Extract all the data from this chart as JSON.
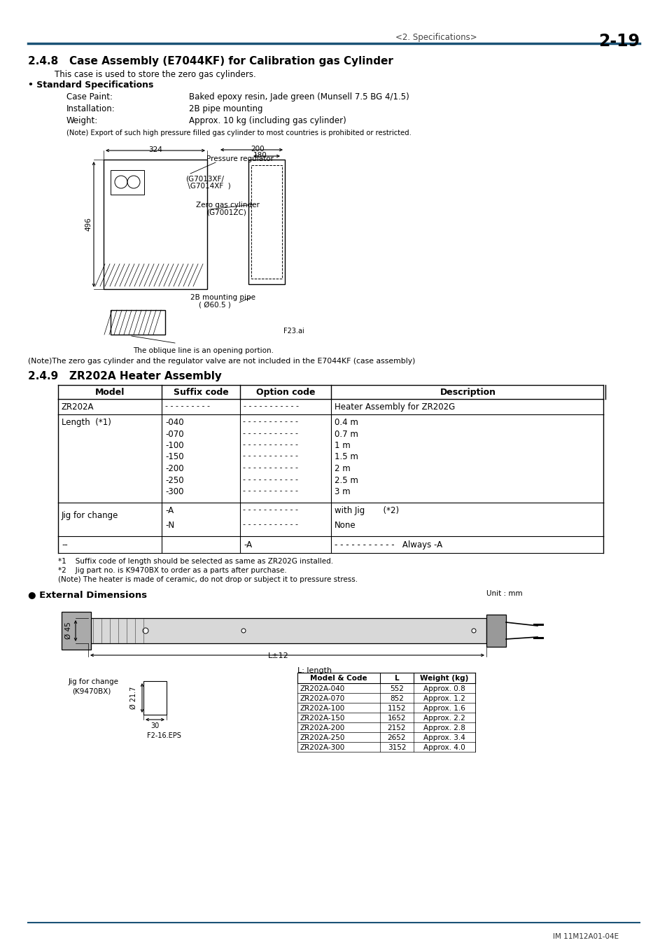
{
  "page_header_left": "<2. Specifications>",
  "page_header_right": "2-19",
  "section_248_title": "2.4.8   Case Assembly (E7044KF) for Calibration gas Cylinder",
  "section_248_intro": "This case is used to store the zero gas cylinders.",
  "std_spec_title": "• Standard Specifications",
  "spec_rows": [
    [
      "Case Paint:",
      "Baked epoxy resin, Jade green (Munsell 7.5 BG 4/1.5)"
    ],
    [
      "Installation:",
      "2B pipe mounting"
    ],
    [
      "Weight:",
      "Approx. 10 kg (including gas cylinder)"
    ]
  ],
  "note_export": "(Note) Export of such high pressure filled gas cylinder to most countries is prohibited or restricted.",
  "note_zero": "(Note)The zero gas cylinder and the regulator valve are not included in the E7044KF (case assembly)",
  "oblique_note": "The oblique line is an opening portion.",
  "fig_label": "F23.ai",
  "section_249_title": "2.4.9   ZR202A Heater Assembly",
  "table_headers": [
    "Model",
    "Suffix code",
    "Option code",
    "Description"
  ],
  "table_rows": [
    [
      "ZR202A",
      "- - - - - - - - -",
      "- - - - - - - - - - -",
      "Heater Assembly for ZR202G"
    ],
    [
      "Length  (*1)",
      "-040\n-070\n-100\n-150\n-200\n-250\n-300",
      "- - - - - - - - - - -\n- - - - - - - - - - -\n- - - - - - - - - - -\n- - - - - - - - - - -\n- - - - - - - - - - -\n- - - - - - - - - - -\n- - - - - - - - - - -",
      "0.4 m\n0.7 m\n1 m\n1.5 m\n2 m\n2.5 m\n3 m"
    ],
    [
      "Jig for change",
      "-A\n-N",
      "- - - - - - - - - - -\n- - - - - - - - - - -",
      "with Jig       (*2)\nNone"
    ],
    [
      "--",
      "",
      "-A",
      "- - - - - - - - - - -   Always -A"
    ]
  ],
  "footnote1": "*1    Suffix code of length should be selected as same as ZR202G installed.",
  "footnote2": "*2    Jig part no. is K9470BX to order as a parts after purchase.",
  "footnote3": "(Note) The heater is made of ceramic, do not drop or subject it to pressure stress.",
  "ext_dim_title": "● External Dimensions",
  "unit_label": "Unit : mm",
  "dim_table_headers": [
    "Model & Code",
    "L",
    "Weight (kg)"
  ],
  "dim_table_rows": [
    [
      "ZR202A-040",
      "552",
      "Approx. 0.8"
    ],
    [
      "ZR202A-070",
      "852",
      "Approx. 1.2"
    ],
    [
      "ZR202A-100",
      "1152",
      "Approx. 1.6"
    ],
    [
      "ZR202A-150",
      "1652",
      "Approx. 2.2"
    ],
    [
      "ZR202A-200",
      "2152",
      "Approx. 2.8"
    ],
    [
      "ZR202A-250",
      "2652",
      "Approx. 3.4"
    ],
    [
      "ZR202A-300",
      "3152",
      "Approx. 4.0"
    ]
  ],
  "dim_labels_diameter": "Ø 45",
  "dim_labels_length": "L±12",
  "dim_labels_jig_label": "Jig for change",
  "dim_labels_jig_code": "(K9470BX)",
  "dim_labels_jig_dia": "Ø 21.7",
  "dim_labels_jig_len": "30",
  "dim_labels_fig2": "F2-16.EPS",
  "dim_labels_l_length": "L: length",
  "im_code": "IM 11M12A01-04E",
  "header_line_color": "#1a5276",
  "bottom_line_color": "#1a5276",
  "bg_color": "#ffffff"
}
